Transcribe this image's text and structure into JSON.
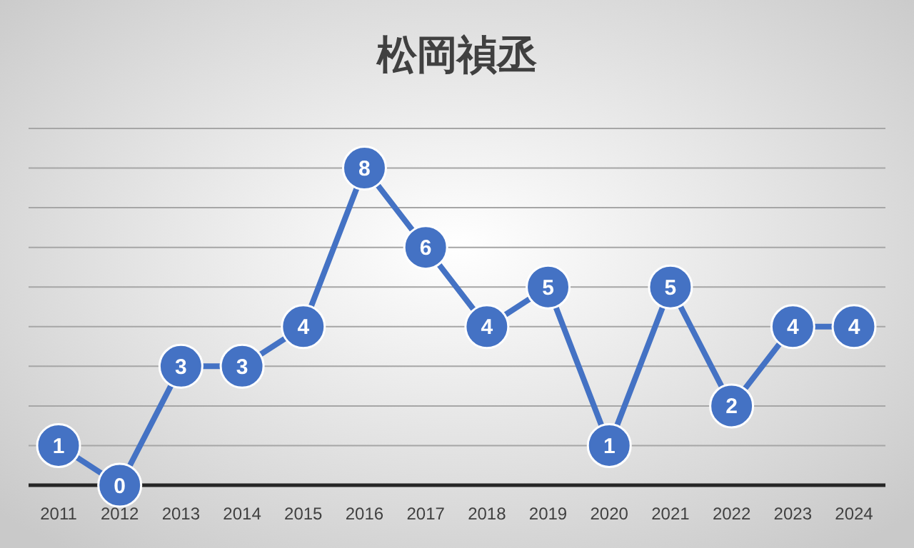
{
  "chart_data": {
    "type": "line",
    "title": "松岡禎丞",
    "categories": [
      "2011",
      "2012",
      "2013",
      "2014",
      "2015",
      "2016",
      "2017",
      "2018",
      "2019",
      "2020",
      "2021",
      "2022",
      "2023",
      "2024"
    ],
    "series": [
      {
        "color": "#4472c4",
        "values": [
          1,
          0,
          3,
          3,
          4,
          8,
          6,
          4,
          5,
          1,
          5,
          2,
          4,
          4
        ]
      }
    ],
    "ylim": [
      0,
      9
    ],
    "yticks": [
      {
        "value": 0,
        "label": null
      },
      {
        "value": 1,
        "label": null
      },
      {
        "value": 2,
        "label": null
      },
      {
        "value": 3,
        "label": null
      },
      {
        "value": 4,
        "label": null
      },
      {
        "value": 5,
        "label": null
      },
      {
        "value": 6,
        "label": null
      },
      {
        "value": 7,
        "label": null
      },
      {
        "value": 8,
        "label": null
      },
      {
        "value": 9,
        "label": null
      }
    ],
    "tick_labels": "x",
    "grid": "y",
    "marker": "circle",
    "line_style": "solid",
    "data_labels": true
  }
}
